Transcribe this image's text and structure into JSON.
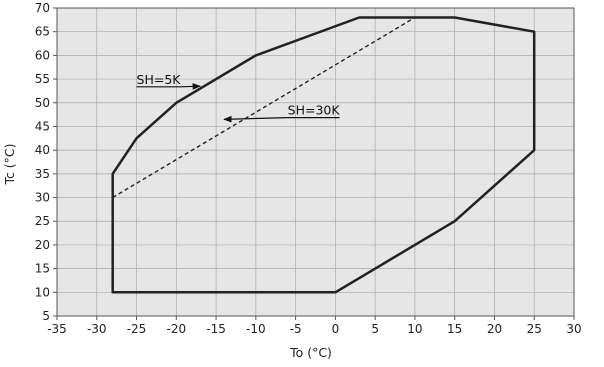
{
  "chart_data": {
    "type": "line",
    "xlabel": "To (°C)",
    "ylabel": "Tc (°C)",
    "xlim": [
      -35,
      30
    ],
    "ylim": [
      5,
      70
    ],
    "xticks": [
      -35,
      -30,
      -25,
      -20,
      -15,
      -10,
      -5,
      0,
      5,
      10,
      15,
      20,
      25,
      30
    ],
    "yticks": [
      5,
      10,
      15,
      20,
      25,
      30,
      35,
      40,
      45,
      50,
      55,
      60,
      65,
      70
    ],
    "grid": true,
    "background_color": "#e6e6e6",
    "grid_color": "#aaaaaa",
    "series": [
      {
        "style": "solid",
        "closed": true,
        "color": "#222222",
        "points": [
          [
            -28,
            10
          ],
          [
            0,
            10
          ],
          [
            15,
            25
          ],
          [
            25,
            40
          ],
          [
            25,
            65
          ],
          [
            15,
            68
          ],
          [
            3,
            68
          ],
          [
            -10,
            60
          ],
          [
            -20,
            50
          ],
          [
            -25,
            42.5
          ],
          [
            -28,
            35
          ],
          [
            -28,
            10
          ]
        ]
      },
      {
        "style": "dashed",
        "closed": false,
        "color": "#222222",
        "points": [
          [
            -28,
            30
          ],
          [
            10,
            68
          ]
        ]
      }
    ],
    "annotations": [
      {
        "text": "SH=5K",
        "at": [
          -25,
          54
        ],
        "arrow_to": [
          -17,
          53.5
        ]
      },
      {
        "text": "SH=30K",
        "at": [
          -6,
          47.5
        ],
        "arrow_to": [
          -14,
          46.5
        ]
      }
    ]
  }
}
